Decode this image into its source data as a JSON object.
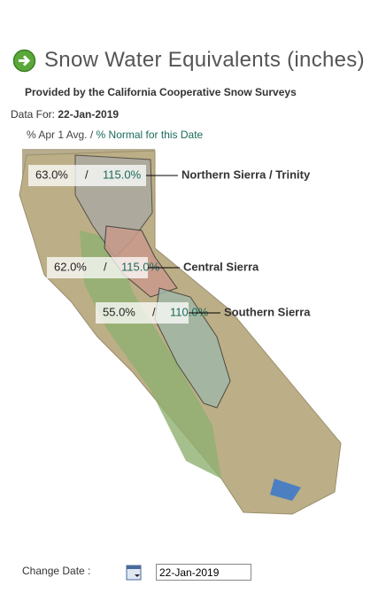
{
  "header": {
    "title": "Snow Water Equivalents (inches)",
    "subtitle": "Provided by the California Cooperative Snow Surveys"
  },
  "data_for": {
    "label": "Data For:",
    "date": "22-Jan-2019"
  },
  "legend": {
    "apr1_avg": "% Apr 1 Avg.",
    "separator": "/",
    "normal": "% Normal for this Date"
  },
  "regions": [
    {
      "name": "Northern Sierra / Trinity",
      "apr1_avg": "63.0%",
      "normal": "115.0%"
    },
    {
      "name": "Central Sierra",
      "apr1_avg": "62.0%",
      "normal": "115.0%"
    },
    {
      "name": "Southern Sierra",
      "apr1_avg": "55.0%",
      "normal": "110.0%"
    }
  ],
  "change_date": {
    "label": "Change Date :",
    "value": "22-Jan-2019"
  }
}
